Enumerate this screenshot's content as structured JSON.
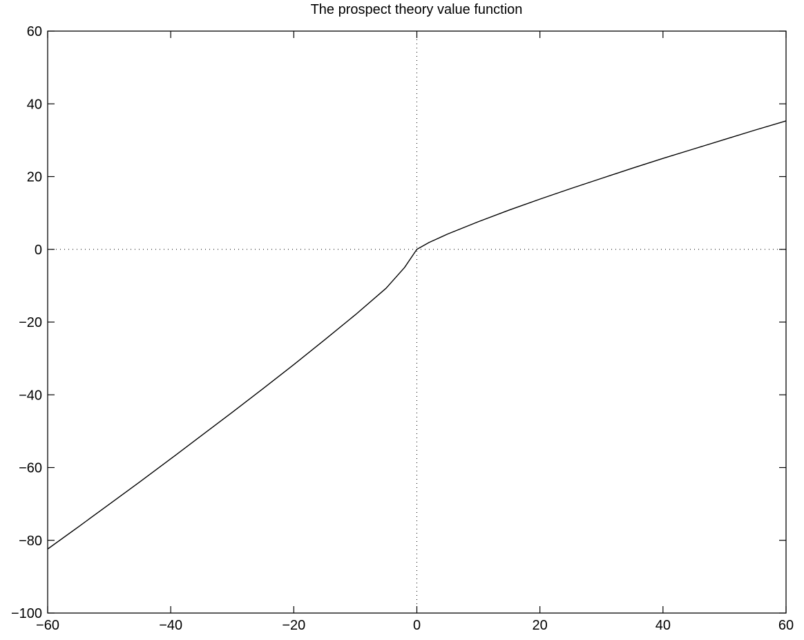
{
  "chart_data": {
    "type": "line",
    "title": "The prospect theory value function",
    "xlabel": "",
    "ylabel": "",
    "xlim": [
      -60,
      60
    ],
    "ylim": [
      -100,
      60
    ],
    "xticks": [
      -60,
      -40,
      -20,
      0,
      20,
      40,
      60
    ],
    "yticks": [
      -100,
      -80,
      -60,
      -40,
      -20,
      0,
      20,
      40,
      60
    ],
    "xtick_labels": [
      "−60",
      "−40",
      "−20",
      "0",
      "20",
      "40",
      "60"
    ],
    "ytick_labels": [
      "−100",
      "−80",
      "−60",
      "−40",
      "−20",
      "0",
      "20",
      "40",
      "60"
    ],
    "grid": false,
    "reference_lines": {
      "x_zero": true,
      "y_zero": true,
      "style": "dotted"
    },
    "series": [
      {
        "x": [
          -60,
          -55,
          -50,
          -45,
          -40,
          -35,
          -30,
          -25,
          -20,
          -15,
          -10,
          -5,
          -2,
          0,
          2,
          5,
          10,
          15,
          20,
          25,
          30,
          35,
          40,
          45,
          50,
          55,
          60
        ],
        "y": [
          -82.4,
          -76.3,
          -70.1,
          -63.9,
          -57.6,
          -51.2,
          -44.8,
          -38.3,
          -31.7,
          -24.9,
          -18.0,
          -10.7,
          -5.0,
          0,
          1.9,
          4.2,
          7.6,
          10.8,
          13.8,
          16.7,
          19.5,
          22.3,
          25.0,
          27.6,
          30.2,
          32.8,
          35.3
        ]
      }
    ],
    "colors": {
      "line": "#000000",
      "axes": "#000000",
      "background": "#ffffff"
    }
  }
}
